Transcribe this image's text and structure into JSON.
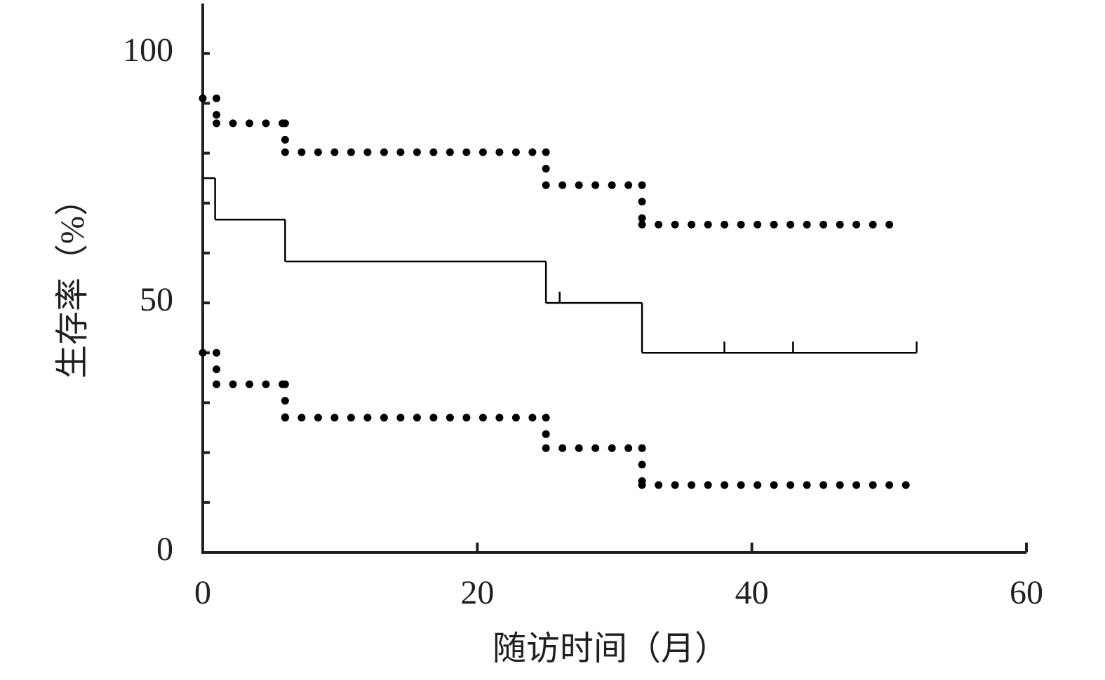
{
  "chart_data": {
    "type": "step",
    "xlabel": "随访时间（月）",
    "ylabel": "生存率（%）",
    "xlim": [
      0,
      60
    ],
    "xticks": [
      0,
      20,
      40,
      60
    ],
    "ylim": [
      0,
      110
    ],
    "yticks": [
      0,
      50,
      100
    ],
    "y_minor_ticks": [
      10,
      20,
      30,
      40,
      60,
      70,
      80,
      90
    ],
    "series": [
      {
        "style": "solid",
        "color": "#000000",
        "x": [
          0,
          0.9,
          6,
          25,
          32,
          52
        ],
        "values": [
          75,
          66.7,
          58.3,
          50,
          40,
          40
        ],
        "censored": [
          26,
          38,
          43,
          52
        ]
      },
      {
        "style": "dotted",
        "color": "#000000",
        "x": [
          0,
          1,
          6,
          25,
          32,
          51
        ],
        "values": [
          91,
          86,
          80.2,
          73.6,
          65.7,
          65.7
        ]
      },
      {
        "style": "dotted",
        "color": "#000000",
        "x": [
          0,
          1,
          6,
          25,
          32,
          51.5
        ],
        "values": [
          40,
          33.7,
          27,
          20.9,
          13.5,
          13.5
        ]
      }
    ]
  }
}
